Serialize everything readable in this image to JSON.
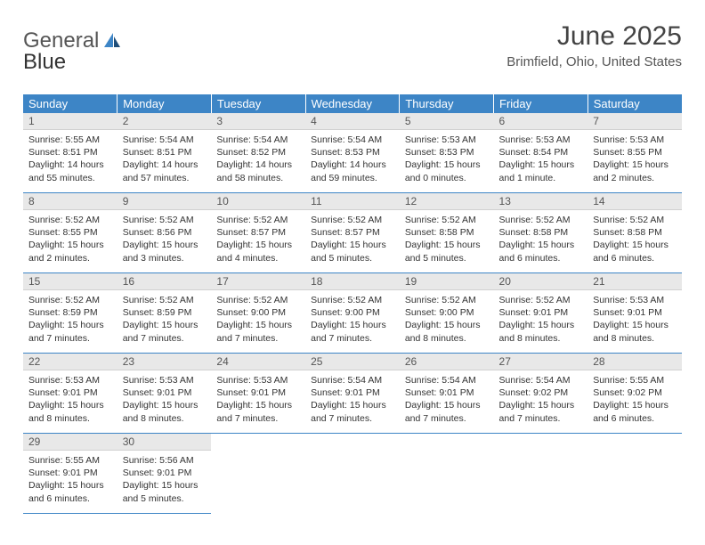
{
  "brand": {
    "general": "General",
    "blue": "Blue"
  },
  "title": "June 2025",
  "location": "Brimfield, Ohio, United States",
  "colors": {
    "header_bg": "#3d85c6",
    "header_text": "#ffffff",
    "daynum_bg": "#e8e8e8",
    "border": "#3d85c6",
    "text": "#333333",
    "brand_gray": "#555555",
    "brand_blue": "#3d85c6"
  },
  "weekdays": [
    "Sunday",
    "Monday",
    "Tuesday",
    "Wednesday",
    "Thursday",
    "Friday",
    "Saturday"
  ],
  "weeks": [
    [
      {
        "n": "1",
        "sr": "5:55 AM",
        "ss": "8:51 PM",
        "dl": "14 hours and 55 minutes."
      },
      {
        "n": "2",
        "sr": "5:54 AM",
        "ss": "8:51 PM",
        "dl": "14 hours and 57 minutes."
      },
      {
        "n": "3",
        "sr": "5:54 AM",
        "ss": "8:52 PM",
        "dl": "14 hours and 58 minutes."
      },
      {
        "n": "4",
        "sr": "5:54 AM",
        "ss": "8:53 PM",
        "dl": "14 hours and 59 minutes."
      },
      {
        "n": "5",
        "sr": "5:53 AM",
        "ss": "8:53 PM",
        "dl": "15 hours and 0 minutes."
      },
      {
        "n": "6",
        "sr": "5:53 AM",
        "ss": "8:54 PM",
        "dl": "15 hours and 1 minute."
      },
      {
        "n": "7",
        "sr": "5:53 AM",
        "ss": "8:55 PM",
        "dl": "15 hours and 2 minutes."
      }
    ],
    [
      {
        "n": "8",
        "sr": "5:52 AM",
        "ss": "8:55 PM",
        "dl": "15 hours and 2 minutes."
      },
      {
        "n": "9",
        "sr": "5:52 AM",
        "ss": "8:56 PM",
        "dl": "15 hours and 3 minutes."
      },
      {
        "n": "10",
        "sr": "5:52 AM",
        "ss": "8:57 PM",
        "dl": "15 hours and 4 minutes."
      },
      {
        "n": "11",
        "sr": "5:52 AM",
        "ss": "8:57 PM",
        "dl": "15 hours and 5 minutes."
      },
      {
        "n": "12",
        "sr": "5:52 AM",
        "ss": "8:58 PM",
        "dl": "15 hours and 5 minutes."
      },
      {
        "n": "13",
        "sr": "5:52 AM",
        "ss": "8:58 PM",
        "dl": "15 hours and 6 minutes."
      },
      {
        "n": "14",
        "sr": "5:52 AM",
        "ss": "8:58 PM",
        "dl": "15 hours and 6 minutes."
      }
    ],
    [
      {
        "n": "15",
        "sr": "5:52 AM",
        "ss": "8:59 PM",
        "dl": "15 hours and 7 minutes."
      },
      {
        "n": "16",
        "sr": "5:52 AM",
        "ss": "8:59 PM",
        "dl": "15 hours and 7 minutes."
      },
      {
        "n": "17",
        "sr": "5:52 AM",
        "ss": "9:00 PM",
        "dl": "15 hours and 7 minutes."
      },
      {
        "n": "18",
        "sr": "5:52 AM",
        "ss": "9:00 PM",
        "dl": "15 hours and 7 minutes."
      },
      {
        "n": "19",
        "sr": "5:52 AM",
        "ss": "9:00 PM",
        "dl": "15 hours and 8 minutes."
      },
      {
        "n": "20",
        "sr": "5:52 AM",
        "ss": "9:01 PM",
        "dl": "15 hours and 8 minutes."
      },
      {
        "n": "21",
        "sr": "5:53 AM",
        "ss": "9:01 PM",
        "dl": "15 hours and 8 minutes."
      }
    ],
    [
      {
        "n": "22",
        "sr": "5:53 AM",
        "ss": "9:01 PM",
        "dl": "15 hours and 8 minutes."
      },
      {
        "n": "23",
        "sr": "5:53 AM",
        "ss": "9:01 PM",
        "dl": "15 hours and 8 minutes."
      },
      {
        "n": "24",
        "sr": "5:53 AM",
        "ss": "9:01 PM",
        "dl": "15 hours and 7 minutes."
      },
      {
        "n": "25",
        "sr": "5:54 AM",
        "ss": "9:01 PM",
        "dl": "15 hours and 7 minutes."
      },
      {
        "n": "26",
        "sr": "5:54 AM",
        "ss": "9:01 PM",
        "dl": "15 hours and 7 minutes."
      },
      {
        "n": "27",
        "sr": "5:54 AM",
        "ss": "9:02 PM",
        "dl": "15 hours and 7 minutes."
      },
      {
        "n": "28",
        "sr": "5:55 AM",
        "ss": "9:02 PM",
        "dl": "15 hours and 6 minutes."
      }
    ],
    [
      {
        "n": "29",
        "sr": "5:55 AM",
        "ss": "9:01 PM",
        "dl": "15 hours and 6 minutes."
      },
      {
        "n": "30",
        "sr": "5:56 AM",
        "ss": "9:01 PM",
        "dl": "15 hours and 5 minutes."
      },
      null,
      null,
      null,
      null,
      null
    ]
  ],
  "labels": {
    "sunrise": "Sunrise:",
    "sunset": "Sunset:",
    "daylight": "Daylight:"
  }
}
